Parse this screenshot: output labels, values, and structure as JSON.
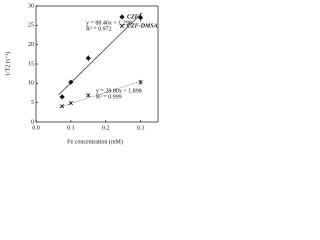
{
  "chart_data": {
    "type": "scatter",
    "xlabel": "Fe concentration (mM)",
    "ylabel": "1/T2 (s⁻¹)",
    "xlim": [
      0,
      0.35
    ],
    "ylim": [
      0,
      30
    ],
    "xticks": [
      {
        "value": 0,
        "label": "0.0"
      },
      {
        "value": 0.1,
        "label": "0.1"
      },
      {
        "value": 0.2,
        "label": "0.2"
      },
      {
        "value": 0.3,
        "label": "0.3"
      }
    ],
    "yticks": [
      0,
      5,
      10,
      15,
      20,
      25,
      30
    ],
    "legend": "upper right",
    "x": [
      0.075,
      0.1,
      0.15,
      0.3
    ],
    "series": [
      {
        "name": "CZF",
        "color": "#111111",
        "marker": "diamond",
        "values": [
          6.5,
          10.3,
          16.5,
          27
        ],
        "errors": [
          0.4,
          0.5,
          0.8,
          1.2
        ],
        "trendline": {
          "slope": 88.46,
          "intercept": 1.298
        },
        "annotations": [
          "y = 88.46x + 1.298",
          "R² = 0.972"
        ]
      },
      {
        "name": "CZF-DMSA",
        "color": "#111111",
        "marker": "x",
        "values": [
          4.1,
          4.9,
          6.9,
          10.3
        ],
        "errors": [
          0.3,
          0.3,
          0.4,
          0.6
        ],
        "trendline": {
          "slope": 28.8,
          "intercept": 1.898
        },
        "annotations": [
          "y = 28.80x + 1.898",
          "R² = 0.999"
        ]
      }
    ]
  }
}
